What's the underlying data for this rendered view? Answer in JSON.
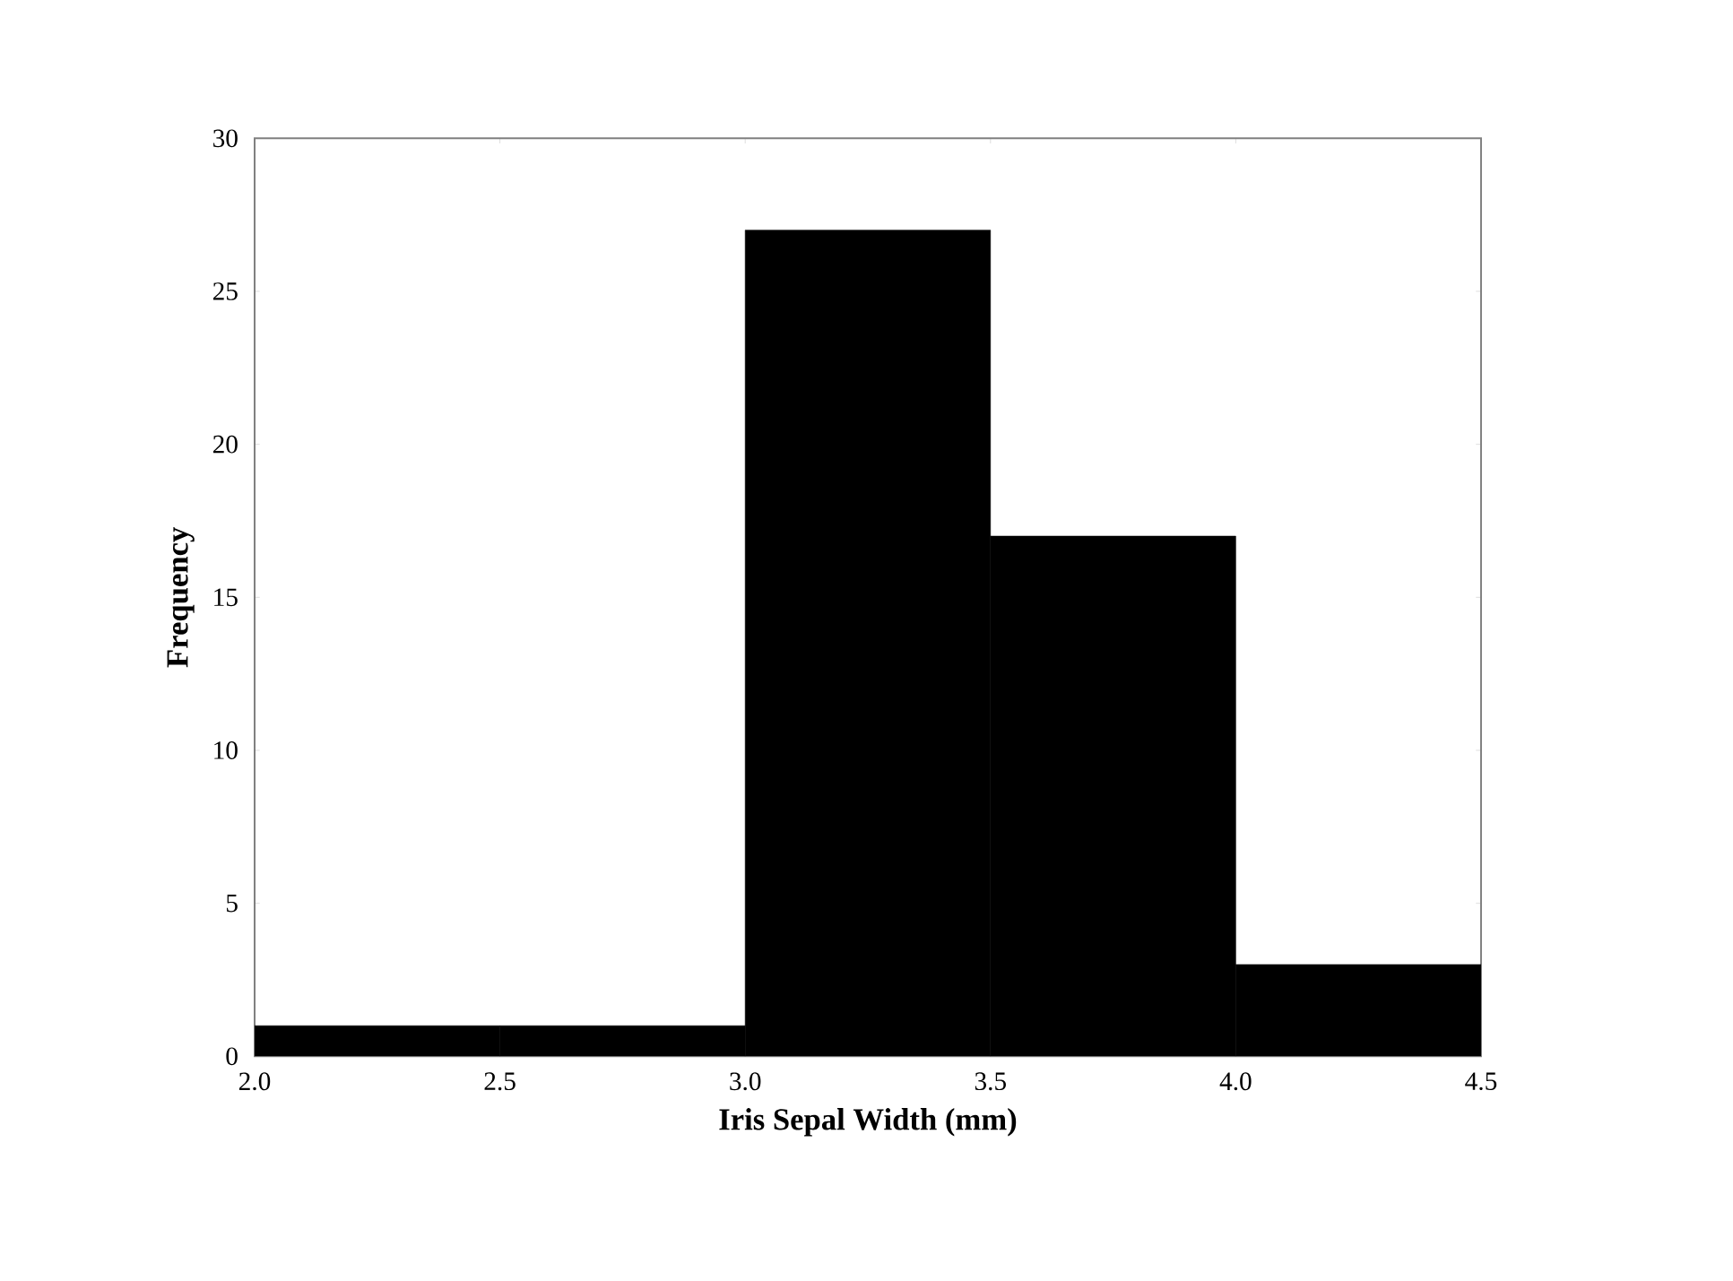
{
  "chart_data": {
    "type": "histogram",
    "xlabel": "Iris Sepal Width (mm)",
    "ylabel": "Frequency",
    "bins": [
      2.0,
      2.5,
      3.0,
      3.5,
      4.0,
      4.5
    ],
    "values": [
      1,
      1,
      27,
      17,
      3
    ],
    "color": "#000000",
    "xlim": [
      2.0,
      4.5
    ],
    "ylim": [
      0,
      30
    ],
    "xticks": [
      {
        "value": 2.0,
        "label": "2.0"
      },
      2.5,
      {
        "value": 3.0,
        "label": "3.0"
      },
      3.5,
      {
        "value": 4.0,
        "label": "4.0"
      },
      4.5
    ],
    "yticks": [
      0,
      5,
      10,
      15,
      20,
      25,
      30
    ],
    "grid": false
  }
}
